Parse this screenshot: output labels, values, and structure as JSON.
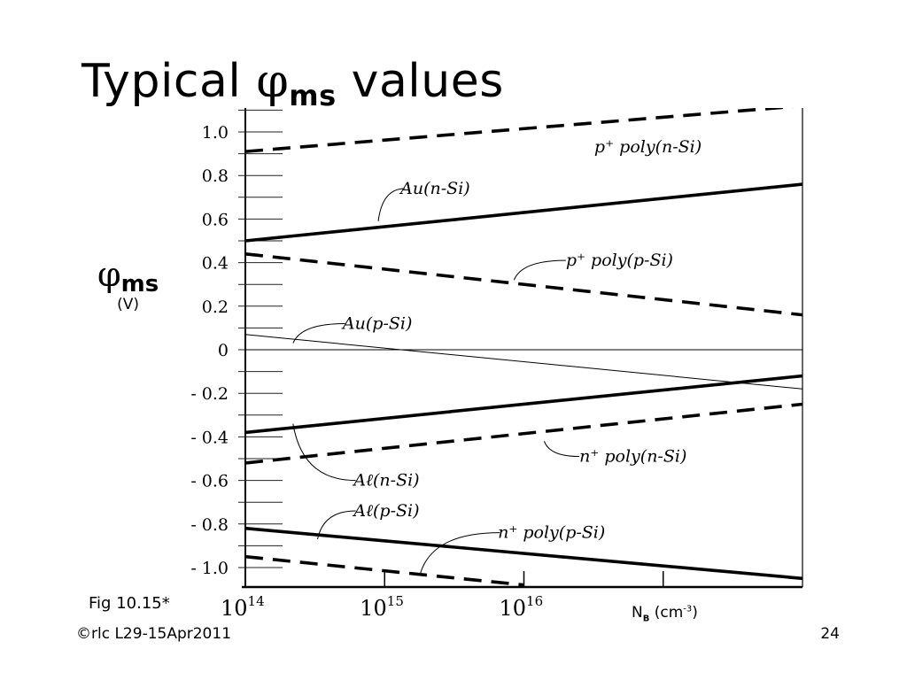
{
  "slide": {
    "title_prefix": "Typical ",
    "title_symbol": "φ",
    "title_subscript": "ms",
    "title_suffix": " values",
    "ylabel_symbol": "φ",
    "ylabel_subscript": "ms",
    "ylabel_unit": "(V)",
    "figure_ref": "Fig 10.15*",
    "footer_left": "©rlc L29-15Apr2011",
    "footer_right": "24",
    "xunit_base": "N",
    "xunit_sub": "B",
    "xunit_open": " (cm",
    "xunit_sup": "-3",
    "xunit_close": ")"
  },
  "chart_data": {
    "type": "line",
    "x_scale": "log",
    "xlim": [
      100000000000000.0,
      1e+18
    ],
    "ylim": [
      -1.1,
      1.1
    ],
    "y_ticks": [
      {
        "value": 1.0,
        "label": "1.0"
      },
      {
        "value": 0.8,
        "label": "0.8"
      },
      {
        "value": 0.6,
        "label": "0.6"
      },
      {
        "value": 0.4,
        "label": "0.4"
      },
      {
        "value": 0.2,
        "label": "0.2"
      },
      {
        "value": 0,
        "label": "0"
      },
      {
        "value": -0.2,
        "label": "- 0.2"
      },
      {
        "value": -0.4,
        "label": "- 0.4"
      },
      {
        "value": -0.6,
        "label": "- 0.6"
      },
      {
        "value": -0.8,
        "label": "- 0.8"
      },
      {
        "value": -1.0,
        "label": "- 1.0"
      }
    ],
    "x_ticks": [
      {
        "value": 100000000000000.0,
        "label": "10",
        "exp": "14"
      },
      {
        "value": 1000000000000000.0,
        "label": "10",
        "exp": "15"
      },
      {
        "value": 1e+16,
        "label": "10",
        "exp": "16"
      }
    ],
    "series": [
      {
        "name": "p⁺ poly(n-Si)",
        "style": "dashed",
        "weight": "thick",
        "x": [
          100000000000000.0,
          1e+18
        ],
        "y": [
          0.91,
          1.12
        ]
      },
      {
        "name": "Au(n-Si)",
        "style": "solid",
        "weight": "thick",
        "x": [
          100000000000000.0,
          1e+18
        ],
        "y": [
          0.5,
          0.76
        ]
      },
      {
        "name": "p⁺ poly(p-Si)",
        "style": "dashed",
        "weight": "thick",
        "x": [
          100000000000000.0,
          1e+18
        ],
        "y": [
          0.44,
          0.16
        ]
      },
      {
        "name": "Au(p-Si)",
        "style": "solid",
        "weight": "thin",
        "x": [
          100000000000000.0,
          1e+18
        ],
        "y": [
          0.07,
          -0.18
        ]
      },
      {
        "name": "Al(n-Si)",
        "style": "solid",
        "weight": "thick",
        "x": [
          100000000000000.0,
          1e+18
        ],
        "y": [
          -0.38,
          -0.12
        ]
      },
      {
        "name": "n⁺ poly(n-Si)",
        "style": "dashed",
        "weight": "thick",
        "x": [
          100000000000000.0,
          1e+18
        ],
        "y": [
          -0.52,
          -0.25
        ]
      },
      {
        "name": "Al(p-Si)",
        "style": "solid",
        "weight": "thick",
        "x": [
          100000000000000.0,
          1e+18
        ],
        "y": [
          -0.82,
          -1.05
        ]
      },
      {
        "name": "n⁺ poly(p-Si)",
        "style": "dashed",
        "weight": "thick",
        "x": [
          100000000000000.0,
          1e+16
        ],
        "y": [
          -0.95,
          -1.08
        ]
      }
    ],
    "curve_labels": [
      {
        "text": "p⁺ poly(n-Si)",
        "x": 3.2e+16,
        "y": 0.93
      },
      {
        "text": "Au(n-Si)",
        "x": 1300000000000000.0,
        "y": 0.74
      },
      {
        "text": "p⁺ poly(p-Si)",
        "x": 2e+16,
        "y": 0.41
      },
      {
        "text": "Au(p-Si)",
        "x": 500000000000000.0,
        "y": 0.12
      },
      {
        "text": "n⁺ poly(n-Si)",
        "x": 2.5e+16,
        "y": -0.49
      },
      {
        "text": "Aℓ(n-Si)",
        "x": 600000000000000.0,
        "y": -0.6
      },
      {
        "text": "Aℓ(p-Si)",
        "x": 600000000000000.0,
        "y": -0.74
      },
      {
        "text": "n⁺ poly(p-Si)",
        "x": 6500000000000000.0,
        "y": -0.84
      }
    ],
    "label_leaders": [
      {
        "from": [
          1400000000000000.0,
          0.74
        ],
        "to": [
          900000000000000.0,
          0.59
        ]
      },
      {
        "from": [
          2e+16,
          0.41
        ],
        "to": [
          8500000000000000.0,
          0.32
        ]
      },
      {
        "from": [
          520000000000000.0,
          0.12
        ],
        "to": [
          220000000000000.0,
          0.03
        ]
      },
      {
        "from": [
          2.5e+16,
          -0.49
        ],
        "to": [
          1.4e+16,
          -0.42
        ]
      },
      {
        "from": [
          620000000000000.0,
          -0.6
        ],
        "to": [
          220000000000000.0,
          -0.34
        ]
      },
      {
        "from": [
          620000000000000.0,
          -0.74
        ],
        "to": [
          330000000000000.0,
          -0.87
        ]
      },
      {
        "from": [
          6700000000000000.0,
          -0.84
        ],
        "to": [
          1800000000000000.0,
          -1.03
        ]
      }
    ]
  }
}
